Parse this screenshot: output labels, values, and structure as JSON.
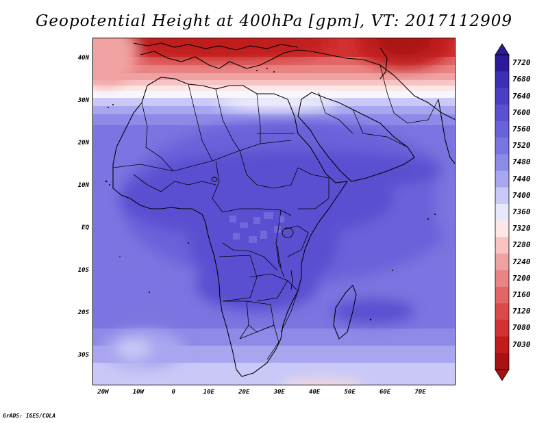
{
  "title": "Geopotential Height at 400hPa [gpm], VT: 2017112909",
  "footer": "GrADS: IGES/COLA",
  "map": {
    "lon_range": [
      -23,
      80
    ],
    "lat_range": [
      -37,
      45
    ],
    "lat_ticks": [
      {
        "value": 40,
        "label": "40N"
      },
      {
        "value": 30,
        "label": "30N"
      },
      {
        "value": 20,
        "label": "20N"
      },
      {
        "value": 10,
        "label": "10N"
      },
      {
        "value": 0,
        "label": "EQ"
      },
      {
        "value": -10,
        "label": "10S"
      },
      {
        "value": -20,
        "label": "20S"
      },
      {
        "value": -30,
        "label": "30S"
      }
    ],
    "lon_ticks": [
      {
        "value": -20,
        "label": "20W"
      },
      {
        "value": -10,
        "label": "10W"
      },
      {
        "value": 0,
        "label": "0"
      },
      {
        "value": 10,
        "label": "10E"
      },
      {
        "value": 20,
        "label": "20E"
      },
      {
        "value": 30,
        "label": "30E"
      },
      {
        "value": 40,
        "label": "40E"
      },
      {
        "value": 50,
        "label": "50E"
      },
      {
        "value": 60,
        "label": "60E"
      },
      {
        "value": 70,
        "label": "70E"
      }
    ]
  },
  "colorbar": {
    "labels": [
      "7720",
      "7680",
      "7640",
      "7600",
      "7560",
      "7520",
      "7480",
      "7440",
      "7400",
      "7360",
      "7320",
      "7280",
      "7240",
      "7200",
      "7160",
      "7120",
      "7080",
      "7030"
    ],
    "colors": [
      "#2a1a9a",
      "#3b2fb3",
      "#4a3fc4",
      "#5a50d0",
      "#6a62da",
      "#7a75e0",
      "#8d8ae8",
      "#a8a6ef",
      "#c9c8f6",
      "#e8e8fc",
      "#fde6e6",
      "#f7c3c3",
      "#f0a2a2",
      "#e88484",
      "#e26666",
      "#db4a4a",
      "#d23232",
      "#c01c1c",
      "#a81212"
    ]
  }
}
